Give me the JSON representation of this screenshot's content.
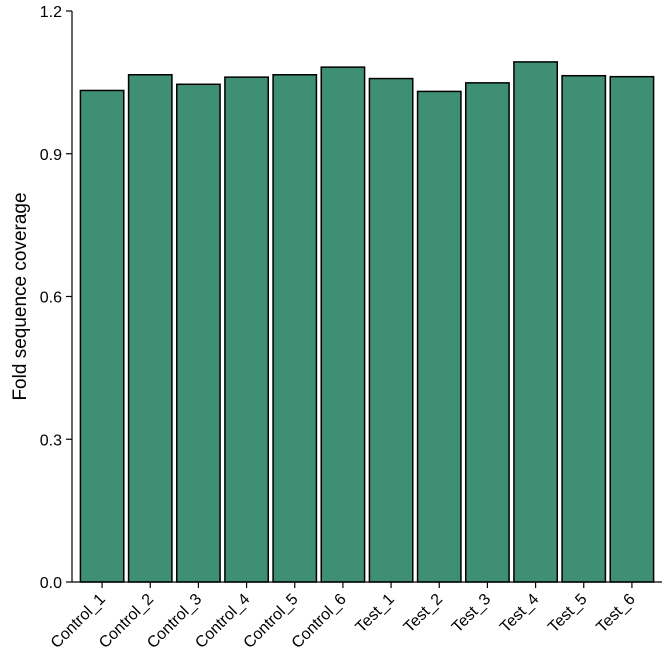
{
  "chart_data": {
    "type": "bar",
    "title": "",
    "xlabel": "",
    "ylabel": "Fold sequence coverage",
    "categories": [
      "Control_1",
      "Control_2",
      "Control_3",
      "Control_4",
      "Control_5",
      "Control_6",
      "Test_1",
      "Test_2",
      "Test_3",
      "Test_4",
      "Test_5",
      "Test_6"
    ],
    "values": [
      1.033,
      1.066,
      1.046,
      1.061,
      1.066,
      1.082,
      1.058,
      1.031,
      1.049,
      1.093,
      1.064,
      1.062
    ],
    "ylim": [
      0,
      1.2
    ],
    "yticks": [
      {
        "value": 0,
        "label": "0.0"
      },
      {
        "value": 0.3,
        "label": "0.3"
      },
      {
        "value": 0.6,
        "label": "0.6"
      },
      {
        "value": 0.9,
        "label": "0.9"
      },
      {
        "value": 1.2,
        "label": "1.2"
      }
    ],
    "grid": false,
    "legend": "none",
    "bar_color": "#3F8F75",
    "bar_edge_color": "#000000"
  }
}
